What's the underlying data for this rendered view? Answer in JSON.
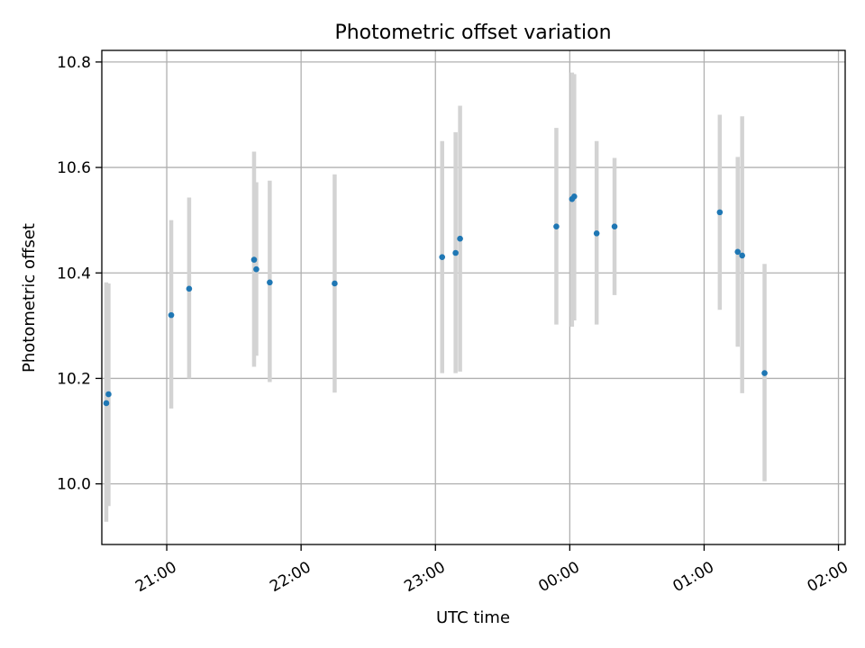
{
  "chart_data": {
    "type": "scatter",
    "title": "Photometric offset variation",
    "xlabel": "UTC time",
    "ylabel": "Photometric offset",
    "grid": true,
    "xlim": [
      "20:31",
      "02:03"
    ],
    "ylim": [
      9.885,
      10.822
    ],
    "x_ticks": [
      {
        "time": "21:00",
        "label": "21:00"
      },
      {
        "time": "22:00",
        "label": "22:00"
      },
      {
        "time": "23:00",
        "label": "23:00"
      },
      {
        "time": "00:00",
        "label": "00:00"
      },
      {
        "time": "01:00",
        "label": "01:00"
      },
      {
        "time": "02:00",
        "label": "02:00"
      }
    ],
    "y_ticks": [
      {
        "value": 10.0,
        "label": "10.0"
      },
      {
        "value": 10.2,
        "label": "10.2"
      },
      {
        "value": 10.4,
        "label": "10.4"
      },
      {
        "value": 10.6,
        "label": "10.6"
      },
      {
        "value": 10.8,
        "label": "10.8"
      }
    ],
    "colors": {
      "point": "#1f77b4",
      "error_bar": "#d3d3d3",
      "grid": "#b0b0b0"
    },
    "series": [
      {
        "points": [
          {
            "time": "20:33",
            "value": 10.153,
            "low": 9.928,
            "high": 10.382
          },
          {
            "time": "20:34",
            "value": 10.17,
            "low": 9.958,
            "high": 10.38
          },
          {
            "time": "21:02",
            "value": 10.32,
            "low": 10.143,
            "high": 10.5
          },
          {
            "time": "21:10",
            "value": 10.37,
            "low": 10.2,
            "high": 10.543
          },
          {
            "time": "21:39",
            "value": 10.425,
            "low": 10.222,
            "high": 10.63
          },
          {
            "time": "21:40",
            "value": 10.407,
            "low": 10.243,
            "high": 10.572
          },
          {
            "time": "21:46",
            "value": 10.382,
            "low": 10.193,
            "high": 10.575
          },
          {
            "time": "22:15",
            "value": 10.38,
            "low": 10.173,
            "high": 10.587
          },
          {
            "time": "23:03",
            "value": 10.43,
            "low": 10.21,
            "high": 10.65
          },
          {
            "time": "23:09",
            "value": 10.438,
            "low": 10.21,
            "high": 10.667
          },
          {
            "time": "23:11",
            "value": 10.465,
            "low": 10.213,
            "high": 10.717
          },
          {
            "time": "23:54",
            "value": 10.488,
            "low": 10.302,
            "high": 10.675
          },
          {
            "time": "00:01",
            "value": 10.54,
            "low": 10.298,
            "high": 10.78
          },
          {
            "time": "00:02",
            "value": 10.545,
            "low": 10.31,
            "high": 10.777
          },
          {
            "time": "00:12",
            "value": 10.475,
            "low": 10.302,
            "high": 10.65
          },
          {
            "time": "00:20",
            "value": 10.488,
            "low": 10.358,
            "high": 10.618
          },
          {
            "time": "01:07",
            "value": 10.515,
            "low": 10.33,
            "high": 10.7
          },
          {
            "time": "01:15",
            "value": 10.44,
            "low": 10.26,
            "high": 10.62
          },
          {
            "time": "01:17",
            "value": 10.433,
            "low": 10.172,
            "high": 10.697
          },
          {
            "time": "01:27",
            "value": 10.21,
            "low": 10.005,
            "high": 10.417
          }
        ]
      }
    ]
  }
}
